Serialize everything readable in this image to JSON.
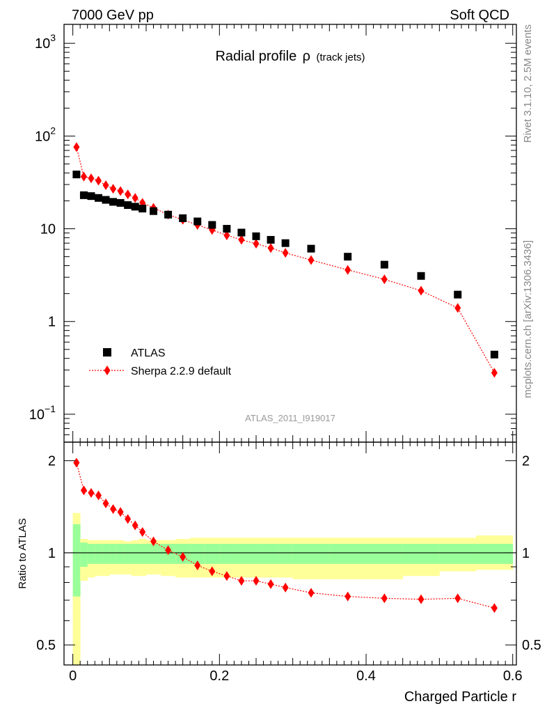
{
  "header": {
    "left": "7000 GeV pp",
    "right": "Soft QCD"
  },
  "side_labels": {
    "rivet": "Rivet 3.1.10,  2.5M events",
    "mcplots": "mcplots.cern.ch [arXiv:1306.3436]"
  },
  "chart_data": [
    {
      "type": "scatter",
      "title": "Radial profile",
      "title_symbol": "ρ",
      "title_suffix": "(track jets)",
      "analysis_label": "ATLAS_2011_I919017",
      "yscale": "log",
      "xlim": [
        -0.012,
        0.605
      ],
      "ylim": [
        0.05,
        1600
      ],
      "y_ticks": [
        {
          "value": 0.1,
          "base": "10",
          "exp": "−1"
        },
        {
          "value": 1,
          "base": "1",
          "exp": ""
        },
        {
          "value": 10,
          "base": "10",
          "exp": ""
        },
        {
          "value": 100,
          "base": "10",
          "exp": "2"
        },
        {
          "value": 1000,
          "base": "10",
          "exp": "3"
        }
      ],
      "legend": {
        "position": "lower-left",
        "entries": [
          "ATLAS",
          "Sherpa 2.2.9 default"
        ]
      },
      "colors": {
        "data": "#000000",
        "mc": "#ff0000"
      },
      "x": [
        0.005,
        0.015,
        0.025,
        0.035,
        0.045,
        0.055,
        0.065,
        0.075,
        0.085,
        0.095,
        0.11,
        0.13,
        0.15,
        0.17,
        0.19,
        0.21,
        0.23,
        0.25,
        0.27,
        0.29,
        0.325,
        0.375,
        0.425,
        0.475,
        0.525,
        0.575
      ],
      "series": [
        {
          "name": "ATLAS",
          "marker": "square",
          "values": [
            38.5,
            23.0,
            22.5,
            21.5,
            20.5,
            19.5,
            19.0,
            18.0,
            17.3,
            16.5,
            15.5,
            14.2,
            13.0,
            12.0,
            11.0,
            10.0,
            9.1,
            8.3,
            7.6,
            7.0,
            6.1,
            5.0,
            4.1,
            3.1,
            1.95,
            0.44
          ]
        },
        {
          "name": "Sherpa 2.2.9 default",
          "marker": "diamond",
          "line": "dotted",
          "values": [
            76.0,
            36.5,
            35.0,
            33.0,
            29.5,
            27.0,
            25.5,
            23.5,
            21.5,
            19.0,
            16.8,
            14.2,
            12.5,
            11.0,
            9.7,
            8.5,
            7.6,
            6.9,
            6.2,
            5.5,
            4.6,
            3.6,
            2.85,
            2.15,
            1.4,
            0.28
          ]
        }
      ]
    },
    {
      "type": "scatter",
      "ylabel": "Ratio to ATLAS",
      "xlabel": "Charged Particle r",
      "xlim": [
        -0.012,
        0.605
      ],
      "ylim": [
        0.43,
        2.3
      ],
      "y_ticks": [
        0.5,
        1,
        2
      ],
      "y_ticklabels": [
        "0.5",
        "1",
        "2"
      ],
      "x_ticks": [
        0,
        0.2,
        0.4,
        0.6
      ],
      "x_ticklabels": [
        "0",
        "0.2",
        "0.4",
        "0.6"
      ],
      "colors": {
        "band_inner": "#99ff99",
        "band_outer": "#ffff99",
        "ratio": "#ff0000"
      },
      "bin_edges": [
        0,
        0.01,
        0.02,
        0.03,
        0.04,
        0.05,
        0.06,
        0.07,
        0.08,
        0.09,
        0.1,
        0.12,
        0.14,
        0.16,
        0.18,
        0.2,
        0.22,
        0.24,
        0.26,
        0.28,
        0.3,
        0.35,
        0.4,
        0.45,
        0.5,
        0.55,
        0.6
      ],
      "band_inner_lo": [
        0.72,
        0.9,
        0.92,
        0.92,
        0.92,
        0.92,
        0.92,
        0.92,
        0.92,
        0.92,
        0.92,
        0.92,
        0.92,
        0.92,
        0.92,
        0.92,
        0.92,
        0.92,
        0.92,
        0.92,
        0.92,
        0.92,
        0.92,
        0.92,
        0.92,
        0.92
      ],
      "band_inner_hi": [
        1.24,
        1.08,
        1.07,
        1.07,
        1.07,
        1.07,
        1.07,
        1.07,
        1.07,
        1.07,
        1.07,
        1.07,
        1.07,
        1.07,
        1.07,
        1.07,
        1.07,
        1.07,
        1.07,
        1.07,
        1.07,
        1.07,
        1.07,
        1.07,
        1.07,
        1.07
      ],
      "band_outer_lo": [
        0.43,
        0.81,
        0.83,
        0.84,
        0.84,
        0.85,
        0.85,
        0.85,
        0.84,
        0.84,
        0.85,
        0.84,
        0.83,
        0.83,
        0.83,
        0.83,
        0.83,
        0.83,
        0.83,
        0.83,
        0.82,
        0.82,
        0.82,
        0.84,
        0.87,
        0.88
      ],
      "band_outer_hi": [
        1.35,
        1.11,
        1.1,
        1.1,
        1.1,
        1.1,
        1.1,
        1.09,
        1.1,
        1.11,
        1.1,
        1.1,
        1.11,
        1.12,
        1.12,
        1.12,
        1.12,
        1.12,
        1.12,
        1.12,
        1.12,
        1.12,
        1.12,
        1.12,
        1.12,
        1.14
      ],
      "x": [
        0.005,
        0.015,
        0.025,
        0.035,
        0.045,
        0.055,
        0.065,
        0.075,
        0.085,
        0.095,
        0.11,
        0.13,
        0.15,
        0.17,
        0.19,
        0.21,
        0.23,
        0.25,
        0.27,
        0.29,
        0.325,
        0.375,
        0.425,
        0.475,
        0.525,
        0.575
      ],
      "ratio": [
        1.97,
        1.6,
        1.57,
        1.54,
        1.45,
        1.39,
        1.36,
        1.29,
        1.23,
        1.17,
        1.09,
        1.02,
        0.97,
        0.91,
        0.87,
        0.84,
        0.81,
        0.81,
        0.79,
        0.77,
        0.74,
        0.72,
        0.71,
        0.705,
        0.71,
        0.66
      ]
    }
  ]
}
